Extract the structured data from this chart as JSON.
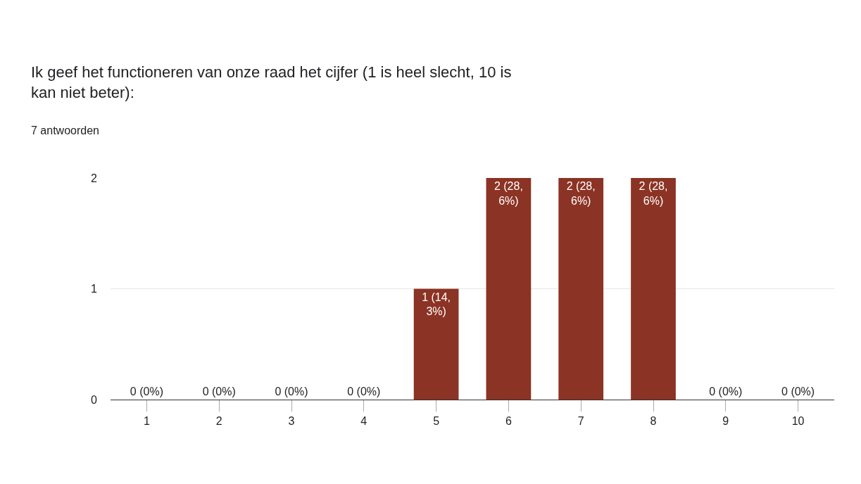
{
  "chart_data": {
    "type": "bar",
    "title": "Ik geef het functioneren van onze raad het cijfer (1 is heel slecht, 10 is kan niet beter):",
    "subtitle": "7 antwoorden",
    "categories": [
      "1",
      "2",
      "3",
      "4",
      "5",
      "6",
      "7",
      "8",
      "9",
      "10"
    ],
    "values": [
      0,
      0,
      0,
      0,
      1,
      2,
      2,
      2,
      0,
      0
    ],
    "value_labels": [
      "0 (0%)",
      "0 (0%)",
      "0 (0%)",
      "0 (0%)",
      "1 (14,3%)",
      "2 (28,6%)",
      "2 (28,6%)",
      "2 (28,6%)",
      "0 (0%)",
      "0 (0%)"
    ],
    "color": "#8b3324",
    "ylim": [
      0,
      2
    ],
    "yticks": [
      0,
      1,
      2
    ],
    "grid": "y",
    "legend": false
  }
}
